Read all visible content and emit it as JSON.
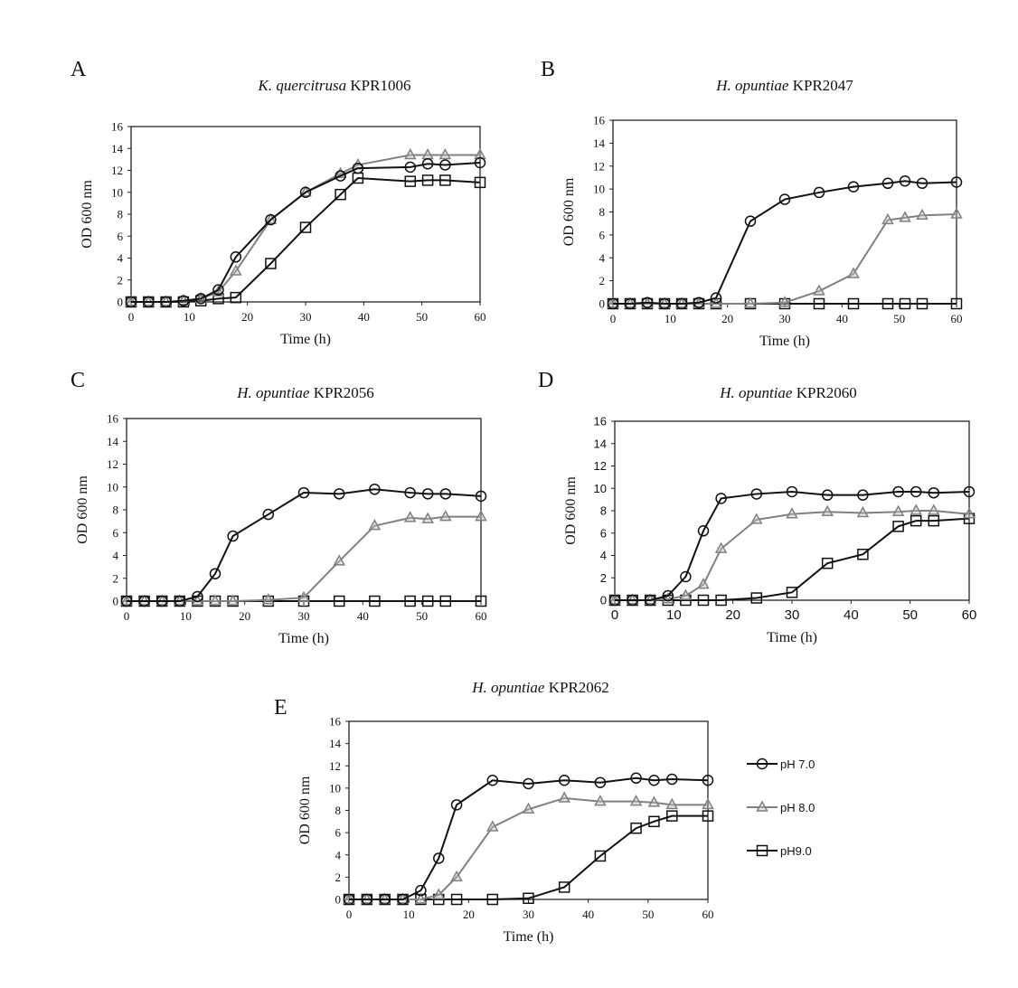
{
  "chart_data": [
    {
      "type": "line",
      "panel": "A",
      "title_italic": "K. quercitrusa",
      "title_strain": "KPR1006",
      "xlabel": "Time (h)",
      "ylabel": "OD 600 nm",
      "xlim": [
        0,
        60
      ],
      "ylim": [
        0,
        16
      ],
      "xticks": [
        0,
        10,
        20,
        30,
        40,
        50,
        60
      ],
      "yticks": [
        0,
        2,
        4,
        6,
        8,
        10,
        12,
        14,
        16
      ],
      "x": [
        0,
        3,
        6,
        9,
        12,
        15,
        18,
        24,
        30,
        36,
        39,
        48,
        51,
        54,
        60
      ],
      "series": [
        {
          "name": "pH 7.0",
          "values": [
            0,
            0,
            0,
            0.1,
            0.3,
            1.1,
            4.1,
            7.5,
            10.0,
            11.5,
            12.2,
            12.3,
            12.6,
            12.5,
            12.7
          ]
        },
        {
          "name": "pH 8.0",
          "values": [
            0,
            0,
            0,
            0.1,
            0.3,
            0.9,
            2.8,
            7.5,
            10.0,
            11.7,
            12.5,
            13.4,
            13.4,
            13.4,
            13.4
          ]
        },
        {
          "name": "pH9.0",
          "values": [
            0,
            0,
            0,
            0,
            0.1,
            0.3,
            0.4,
            3.5,
            6.8,
            9.8,
            11.3,
            11.0,
            11.1,
            11.1,
            10.9
          ]
        }
      ]
    },
    {
      "type": "line",
      "panel": "B",
      "title_italic": "H. opuntiae",
      "title_strain": "KPR2047",
      "xlabel": "Time (h)",
      "ylabel": "OD 600 nm",
      "xlim": [
        0,
        60
      ],
      "ylim": [
        0,
        16
      ],
      "xticks": [
        0,
        10,
        20,
        30,
        40,
        50,
        60
      ],
      "yticks": [
        0,
        2,
        4,
        6,
        8,
        10,
        12,
        14,
        16
      ],
      "x": [
        0,
        3,
        6,
        9,
        12,
        15,
        18,
        24,
        30,
        36,
        42,
        48,
        51,
        54,
        60
      ],
      "series": [
        {
          "name": "pH 7.0",
          "values": [
            0,
            0,
            0.1,
            0,
            0,
            0.1,
            0.5,
            7.2,
            9.1,
            9.7,
            10.2,
            10.5,
            10.7,
            10.5,
            10.6
          ]
        },
        {
          "name": "pH 8.0",
          "values": [
            0,
            0,
            0,
            0,
            0,
            0,
            0,
            0,
            0.1,
            1.1,
            2.6,
            7.3,
            7.5,
            7.7,
            7.8
          ]
        },
        {
          "name": "pH9.0",
          "values": [
            0,
            0,
            0,
            0,
            0,
            0,
            0,
            0,
            0,
            0,
            0,
            0,
            0,
            0,
            0
          ]
        }
      ]
    },
    {
      "type": "line",
      "panel": "C",
      "title_italic": "H. opuntiae",
      "title_strain": "KPR2056",
      "xlabel": "Time (h)",
      "ylabel": "OD 600 nm",
      "xlim": [
        0,
        60
      ],
      "ylim": [
        0,
        16
      ],
      "xticks": [
        0,
        10,
        20,
        30,
        40,
        50,
        60
      ],
      "yticks": [
        0,
        2,
        4,
        6,
        8,
        10,
        12,
        14,
        16
      ],
      "x": [
        0,
        3,
        6,
        9,
        12,
        15,
        18,
        24,
        30,
        36,
        42,
        48,
        51,
        54,
        60
      ],
      "series": [
        {
          "name": "pH 7.0",
          "values": [
            0,
            0,
            0,
            0,
            0.4,
            2.4,
            5.7,
            7.6,
            9.5,
            9.4,
            9.8,
            9.5,
            9.4,
            9.4,
            9.2
          ]
        },
        {
          "name": "pH 8.0",
          "values": [
            0,
            0,
            0,
            0,
            0,
            0,
            0,
            0.1,
            0.3,
            3.5,
            6.6,
            7.3,
            7.2,
            7.4,
            7.4
          ]
        },
        {
          "name": "pH9.0",
          "values": [
            0,
            0,
            0,
            0,
            0,
            0,
            0,
            0,
            0,
            0,
            0,
            0,
            0,
            0,
            0
          ]
        }
      ]
    },
    {
      "type": "line",
      "panel": "D",
      "title_italic": "H. opuntiae",
      "title_strain": "KPR2060",
      "xlabel": "Time (h)",
      "ylabel": "OD 600 nm",
      "xlim": [
        0,
        60
      ],
      "ylim": [
        0,
        16
      ],
      "xticks": [
        0,
        10,
        20,
        30,
        40,
        50,
        60
      ],
      "yticks": [
        0,
        2,
        4,
        6,
        8,
        10,
        12,
        14,
        16
      ],
      "x": [
        0,
        3,
        6,
        9,
        12,
        15,
        18,
        24,
        30,
        36,
        42,
        48,
        51,
        54,
        60
      ],
      "series": [
        {
          "name": "pH 7.0",
          "values": [
            0,
            0,
            0,
            0.4,
            2.1,
            6.2,
            9.1,
            9.5,
            9.7,
            9.4,
            9.4,
            9.7,
            9.7,
            9.6,
            9.7
          ]
        },
        {
          "name": "pH 8.0",
          "values": [
            0,
            0,
            0,
            0.1,
            0.4,
            1.4,
            4.6,
            7.2,
            7.7,
            7.9,
            7.8,
            7.9,
            8.0,
            8.0,
            7.7
          ]
        },
        {
          "name": "pH9.0",
          "values": [
            0,
            0,
            0,
            0,
            0,
            0,
            0,
            0.2,
            0.7,
            3.3,
            4.1,
            6.6,
            7.1,
            7.1,
            7.3
          ]
        }
      ]
    },
    {
      "type": "line",
      "panel": "E",
      "title_italic": "H. opuntiae",
      "title_strain": "KPR2062",
      "xlabel": "Time (h)",
      "ylabel": "OD 600 nm",
      "xlim": [
        0,
        60
      ],
      "ylim": [
        0,
        16
      ],
      "xticks": [
        0,
        10,
        20,
        30,
        40,
        50,
        60
      ],
      "yticks": [
        0,
        2,
        4,
        6,
        8,
        10,
        12,
        14,
        16
      ],
      "x": [
        0,
        3,
        6,
        9,
        12,
        15,
        18,
        24,
        30,
        36,
        42,
        48,
        51,
        54,
        60
      ],
      "legend_position": "right",
      "series": [
        {
          "name": "pH 7.0",
          "values": [
            0,
            0,
            0,
            0,
            0.8,
            3.7,
            8.5,
            10.7,
            10.4,
            10.7,
            10.5,
            10.9,
            10.7,
            10.8,
            10.7
          ]
        },
        {
          "name": "pH 8.0",
          "values": [
            0,
            0,
            0,
            0,
            0,
            0.4,
            2.0,
            6.5,
            8.1,
            9.1,
            8.8,
            8.8,
            8.7,
            8.5,
            8.5
          ]
        },
        {
          "name": "pH9.0",
          "values": [
            0,
            0,
            0,
            0,
            0,
            0,
            0,
            0,
            0.1,
            1.1,
            3.9,
            6.4,
            7.0,
            7.5,
            7.5
          ]
        }
      ]
    }
  ],
  "legend": {
    "items": [
      "pH 7.0",
      "pH 8.0",
      "pH9.0"
    ]
  },
  "colors": {
    "ph7": "#111111",
    "ph8": "#808080",
    "ph9": "#111111",
    "axis": "#222222"
  },
  "markers": {
    "ph7": "circle",
    "ph8": "triangle",
    "ph9": "square"
  }
}
